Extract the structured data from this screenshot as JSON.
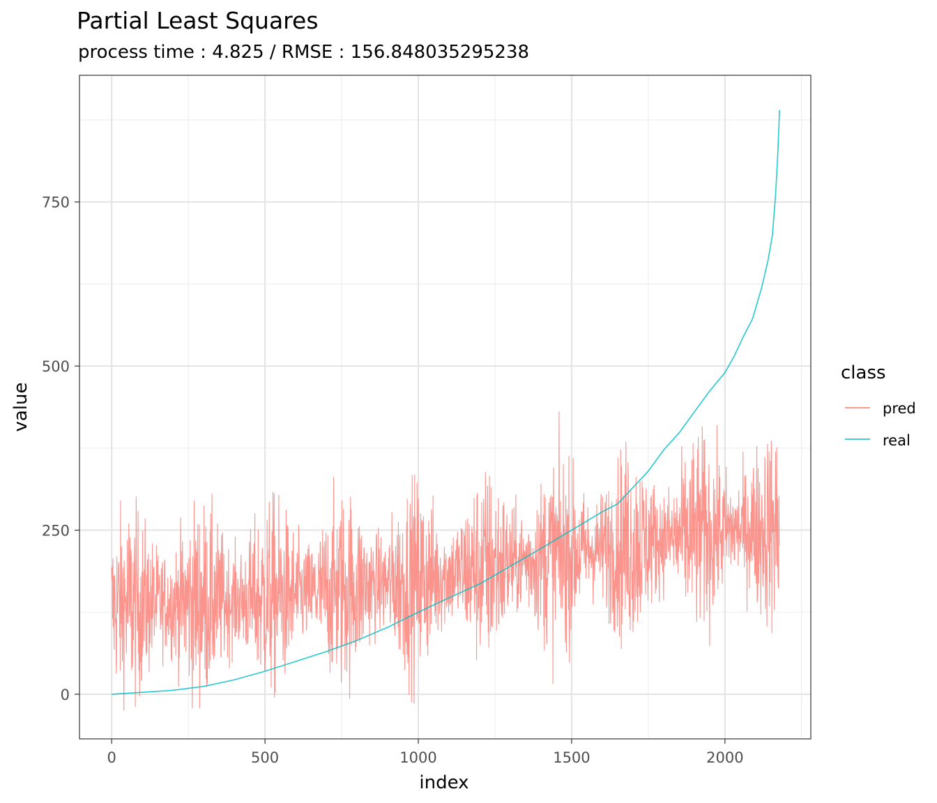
{
  "chart_data": {
    "type": "line",
    "title": "Partial Least Squares",
    "subtitle": "process time : 4.825 / RMSE : 156.848035295238",
    "xlabel": "index",
    "ylabel": "value",
    "xlim": [
      -105,
      2280
    ],
    "ylim": [
      -68,
      943
    ],
    "x_ticks": [
      0,
      500,
      1000,
      1500,
      2000
    ],
    "y_ticks": [
      0,
      250,
      500,
      750
    ],
    "x_tick_labels": [
      "0",
      "500",
      "1000",
      "1500",
      "2000"
    ],
    "y_tick_labels": [
      "0",
      "250",
      "500",
      "750"
    ],
    "grid": true,
    "legend": {
      "title": "class",
      "position": "right"
    },
    "series": [
      {
        "name": "pred",
        "color": "#F8766D"
      },
      {
        "name": "real",
        "color": "#00BFC4"
      }
    ],
    "real_points": [
      [
        0,
        0
      ],
      [
        100,
        3
      ],
      [
        200,
        6
      ],
      [
        300,
        12
      ],
      [
        400,
        22
      ],
      [
        500,
        35
      ],
      [
        600,
        50
      ],
      [
        700,
        65
      ],
      [
        800,
        82
      ],
      [
        900,
        102
      ],
      [
        1000,
        125
      ],
      [
        1100,
        147
      ],
      [
        1200,
        168
      ],
      [
        1300,
        195
      ],
      [
        1400,
        222
      ],
      [
        1500,
        250
      ],
      [
        1600,
        278
      ],
      [
        1650,
        290
      ],
      [
        1700,
        315
      ],
      [
        1750,
        340
      ],
      [
        1800,
        372
      ],
      [
        1850,
        398
      ],
      [
        1900,
        430
      ],
      [
        1950,
        462
      ],
      [
        2000,
        490
      ],
      [
        2030,
        515
      ],
      [
        2060,
        545
      ],
      [
        2090,
        572
      ],
      [
        2120,
        620
      ],
      [
        2140,
        660
      ],
      [
        2155,
        700
      ],
      [
        2165,
        760
      ],
      [
        2172,
        820
      ],
      [
        2178,
        890
      ]
    ],
    "pred_summary": {
      "n_points": 2178,
      "trend": [
        [
          0,
          135
        ],
        [
          500,
          145
        ],
        [
          1000,
          175
        ],
        [
          1500,
          215
        ],
        [
          2000,
          250
        ],
        [
          2178,
          255
        ]
      ],
      "spread": 75,
      "min": -25,
      "max": 440
    }
  }
}
